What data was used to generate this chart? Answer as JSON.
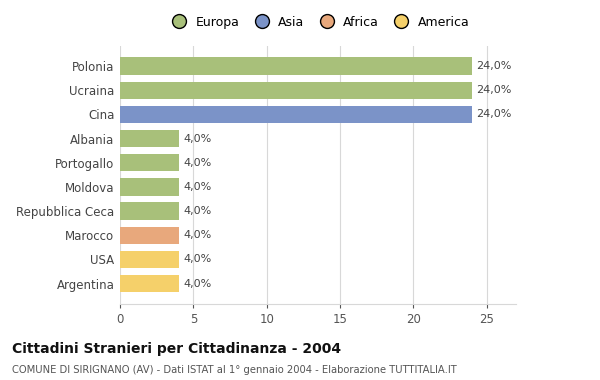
{
  "categories": [
    "Polonia",
    "Ucraina",
    "Cina",
    "Albania",
    "Portogallo",
    "Moldova",
    "Repubblica Ceca",
    "Marocco",
    "USA",
    "Argentina"
  ],
  "values": [
    24.0,
    24.0,
    24.0,
    4.0,
    4.0,
    4.0,
    4.0,
    4.0,
    4.0,
    4.0
  ],
  "colors": [
    "#a8c07a",
    "#a8c07a",
    "#7b93c8",
    "#a8c07a",
    "#a8c07a",
    "#a8c07a",
    "#a8c07a",
    "#e8a87c",
    "#f5d06a",
    "#f5d06a"
  ],
  "labels": [
    "24,0%",
    "24,0%",
    "24,0%",
    "4,0%",
    "4,0%",
    "4,0%",
    "4,0%",
    "4,0%",
    "4,0%",
    "4,0%"
  ],
  "legend_labels": [
    "Europa",
    "Asia",
    "Africa",
    "America"
  ],
  "legend_colors": [
    "#a8c07a",
    "#7b93c8",
    "#e8a87c",
    "#f5d06a"
  ],
  "title": "Cittadini Stranieri per Cittadinanza - 2004",
  "subtitle": "COMUNE DI SIRIGNANO (AV) - Dati ISTAT al 1° gennaio 2004 - Elaborazione TUTTITALIA.IT",
  "xlim": [
    0,
    27
  ],
  "xticks": [
    0,
    5,
    10,
    15,
    20,
    25
  ],
  "background_color": "#ffffff",
  "grid_color": "#d8d8d8"
}
